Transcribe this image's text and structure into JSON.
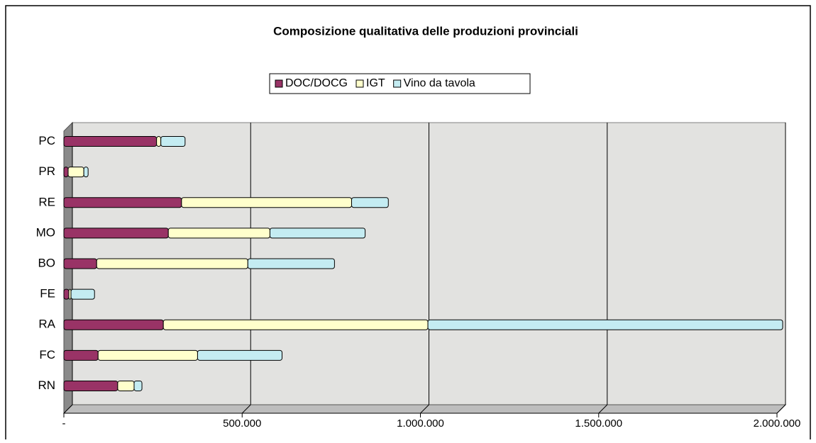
{
  "chart_data": {
    "type": "stacked_hbar",
    "title": "Composizione qualitativa delle produzioni provinciali",
    "categories": [
      "PC",
      "PR",
      "RE",
      "MO",
      "BO",
      "FE",
      "RA",
      "FC",
      "RN"
    ],
    "series": [
      {
        "name": "DOC/DOCG",
        "color": "#993366",
        "values": [
          260000,
          12000,
          330000,
          293000,
          92000,
          14000,
          279000,
          96000,
          151000
        ]
      },
      {
        "name": "IGT",
        "color": "#ffffcc",
        "values": [
          12000,
          44000,
          477000,
          285000,
          424000,
          6000,
          742000,
          279000,
          46000
        ]
      },
      {
        "name": "Vino da tavola",
        "color": "#c4ecf2",
        "values": [
          68000,
          12000,
          103000,
          267000,
          243000,
          66000,
          995000,
          237000,
          22000
        ]
      }
    ],
    "xlim": [
      0,
      2000000
    ],
    "xticks": [
      {
        "value": 0,
        "label": "-"
      },
      {
        "value": 500000,
        "label": "500.000"
      },
      {
        "value": 1000000,
        "label": "1.000.000"
      },
      {
        "value": 1500000,
        "label": "1.500.000"
      },
      {
        "value": 2000000,
        "label": "2.000.000"
      }
    ],
    "grid": true
  }
}
